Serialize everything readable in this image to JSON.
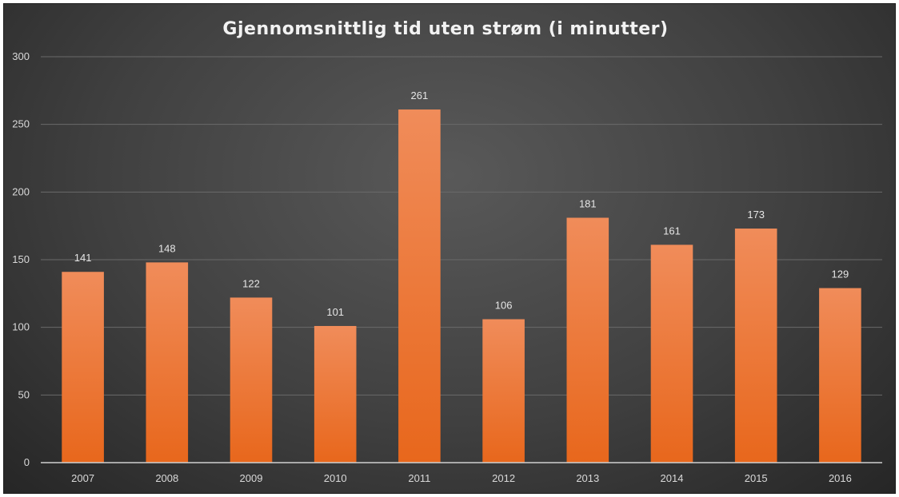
{
  "chart_data": {
    "type": "bar",
    "title": "Gjennomsnittlig tid uten strøm (i minutter)",
    "xlabel": "",
    "ylabel": "",
    "categories": [
      "2007",
      "2008",
      "2009",
      "2010",
      "2011",
      "2012",
      "2013",
      "2014",
      "2015",
      "2016"
    ],
    "values": [
      141,
      148,
      122,
      101,
      261,
      106,
      181,
      161,
      173,
      129
    ],
    "ylim": [
      0,
      300
    ],
    "yticks": [
      0,
      50,
      100,
      150,
      200,
      250,
      300
    ],
    "grid": true,
    "legend": "none",
    "bar_color_top": "#f08c5a",
    "bar_color_bottom": "#e8671c",
    "background_color": "#404040"
  }
}
